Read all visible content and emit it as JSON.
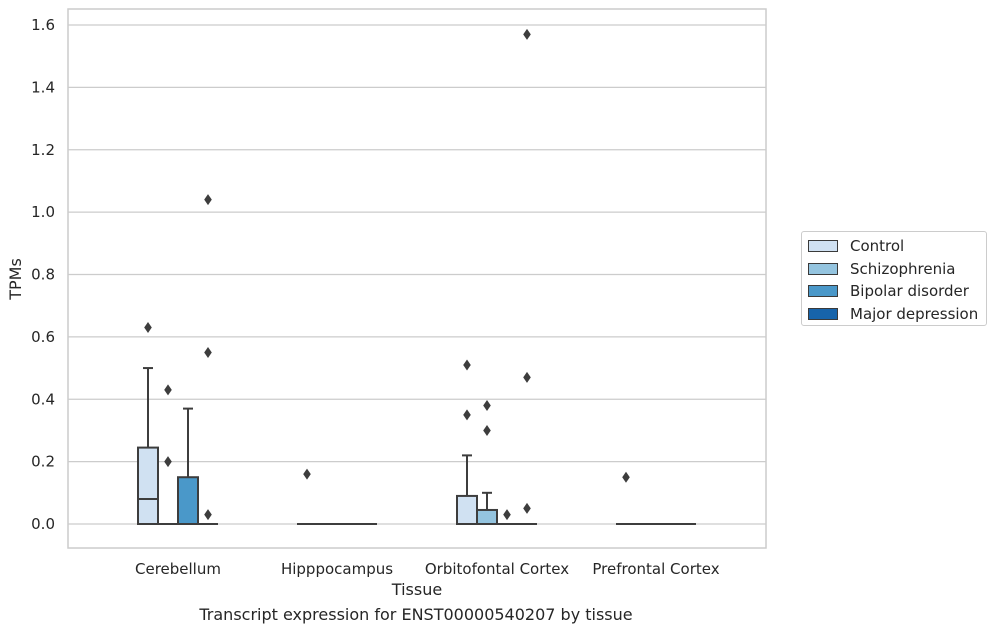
{
  "caption": "Transcript expression for ENST00000540207 by tissue",
  "colors": {
    "Control": "#d0e1f2",
    "Schizophrenia": "#94c4df",
    "Bipolar disorder": "#4a98c9",
    "Major depression": "#1764ab"
  },
  "chart_data": {
    "type": "box",
    "xlabel": "Tissue",
    "ylabel": "TPMs",
    "ylim": [
      -0.08,
      1.65
    ],
    "yticks": [
      0.0,
      0.2,
      0.4,
      0.6,
      0.8,
      1.0,
      1.2,
      1.4,
      1.6
    ],
    "ytick_labels": [
      "0.0",
      "0.2",
      "0.4",
      "0.6",
      "0.8",
      "1.0",
      "1.2",
      "1.4",
      "1.6"
    ],
    "grid": true,
    "legend_position": "right",
    "categories": [
      "Cerebellum",
      "Hipppocampus",
      "Orbitofontal Cortex",
      "Prefrontal Cortex"
    ],
    "series": [
      {
        "name": "Control",
        "boxes": [
          {
            "q1": 0.0,
            "median": 0.08,
            "q3": 0.245,
            "whislo": 0.0,
            "whishi": 0.5,
            "fliers": [
              0.63
            ]
          },
          {
            "q1": 0.0,
            "median": 0.0,
            "q3": 0.0,
            "whislo": 0.0,
            "whishi": 0.0,
            "fliers": [
              0.16
            ]
          },
          {
            "q1": 0.0,
            "median": 0.0,
            "q3": 0.09,
            "whislo": 0.0,
            "whishi": 0.22,
            "fliers": [
              0.51,
              0.35
            ]
          },
          {
            "q1": 0.0,
            "median": 0.0,
            "q3": 0.0,
            "whislo": 0.0,
            "whishi": 0.0,
            "fliers": [
              0.15
            ]
          }
        ]
      },
      {
        "name": "Schizophrenia",
        "boxes": [
          {
            "q1": 0.0,
            "median": 0.0,
            "q3": 0.0,
            "whislo": 0.0,
            "whishi": 0.0,
            "fliers": [
              0.43,
              0.2
            ]
          },
          {
            "q1": 0.0,
            "median": 0.0,
            "q3": 0.0,
            "whislo": 0.0,
            "whishi": 0.0,
            "fliers": []
          },
          {
            "q1": 0.0,
            "median": 0.0,
            "q3": 0.045,
            "whislo": 0.0,
            "whishi": 0.1,
            "fliers": [
              0.38,
              0.3
            ]
          },
          {
            "q1": 0.0,
            "median": 0.0,
            "q3": 0.0,
            "whislo": 0.0,
            "whishi": 0.0,
            "fliers": []
          }
        ]
      },
      {
        "name": "Bipolar disorder",
        "boxes": [
          {
            "q1": 0.0,
            "median": 0.0,
            "q3": 0.15,
            "whislo": 0.0,
            "whishi": 0.37,
            "fliers": []
          },
          {
            "q1": 0.0,
            "median": 0.0,
            "q3": 0.0,
            "whislo": 0.0,
            "whishi": 0.0,
            "fliers": []
          },
          {
            "q1": 0.0,
            "median": 0.0,
            "q3": 0.0,
            "whislo": 0.0,
            "whishi": 0.0,
            "fliers": [
              0.03
            ]
          },
          {
            "q1": 0.0,
            "median": 0.0,
            "q3": 0.0,
            "whislo": 0.0,
            "whishi": 0.0,
            "fliers": []
          }
        ]
      },
      {
        "name": "Major depression",
        "boxes": [
          {
            "q1": 0.0,
            "median": 0.0,
            "q3": 0.0,
            "whislo": 0.0,
            "whishi": 0.0,
            "fliers": [
              1.04,
              0.55,
              0.03
            ]
          },
          {
            "q1": 0.0,
            "median": 0.0,
            "q3": 0.0,
            "whislo": 0.0,
            "whishi": 0.0,
            "fliers": []
          },
          {
            "q1": 0.0,
            "median": 0.0,
            "q3": 0.0,
            "whislo": 0.0,
            "whishi": 0.0,
            "fliers": [
              1.57,
              0.47,
              0.05
            ]
          },
          {
            "q1": 0.0,
            "median": 0.0,
            "q3": 0.0,
            "whislo": 0.0,
            "whishi": 0.0,
            "fliers": []
          }
        ]
      }
    ]
  }
}
